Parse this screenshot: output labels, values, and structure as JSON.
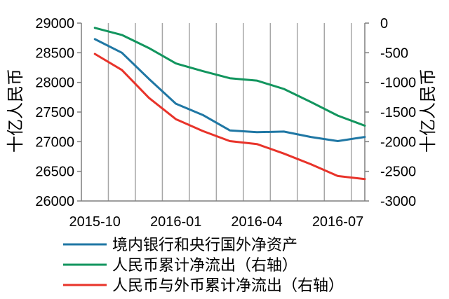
{
  "chart_data": {
    "type": "line",
    "title": "",
    "x": [
      "2015-10",
      "2015-11",
      "2015-12",
      "2016-01",
      "2016-02",
      "2016-03",
      "2016-04",
      "2016-05",
      "2016-06",
      "2016-07",
      "2016-08"
    ],
    "x_tick_labels": [
      "2015-10",
      "2016-01",
      "2016-04",
      "2016-07"
    ],
    "ylabel_left": "十亿人民币",
    "ylabel_right": "十亿人民币",
    "ylim_left": [
      26000,
      29000
    ],
    "ylim_right": [
      -3000,
      0
    ],
    "y_ticks_left": [
      26000,
      26500,
      27000,
      27500,
      28000,
      28500,
      29000
    ],
    "y_ticks_right": [
      -3000,
      -2500,
      -2000,
      -1500,
      -1000,
      -500,
      0
    ],
    "grid": "vertical",
    "legend_position": "bottom",
    "series": [
      {
        "name": "境内银行和央行国外净资产",
        "axis": "left",
        "color": "#1f77a4",
        "values": [
          28730,
          28500,
          28060,
          27640,
          27450,
          27190,
          27160,
          27170,
          27080,
          27010,
          27080
        ]
      },
      {
        "name": "人民币累计净流出（右轴）",
        "axis": "right",
        "color": "#12955e",
        "values": [
          -80,
          -200,
          -420,
          -680,
          -810,
          -930,
          -970,
          -1110,
          -1330,
          -1560,
          -1730
        ]
      },
      {
        "name": "人民币与外币累计净流出（右轴）",
        "axis": "right",
        "color": "#e8332a",
        "values": [
          -520,
          -790,
          -1260,
          -1620,
          -1820,
          -1990,
          -2040,
          -2200,
          -2380,
          -2580,
          -2630
        ]
      }
    ]
  }
}
